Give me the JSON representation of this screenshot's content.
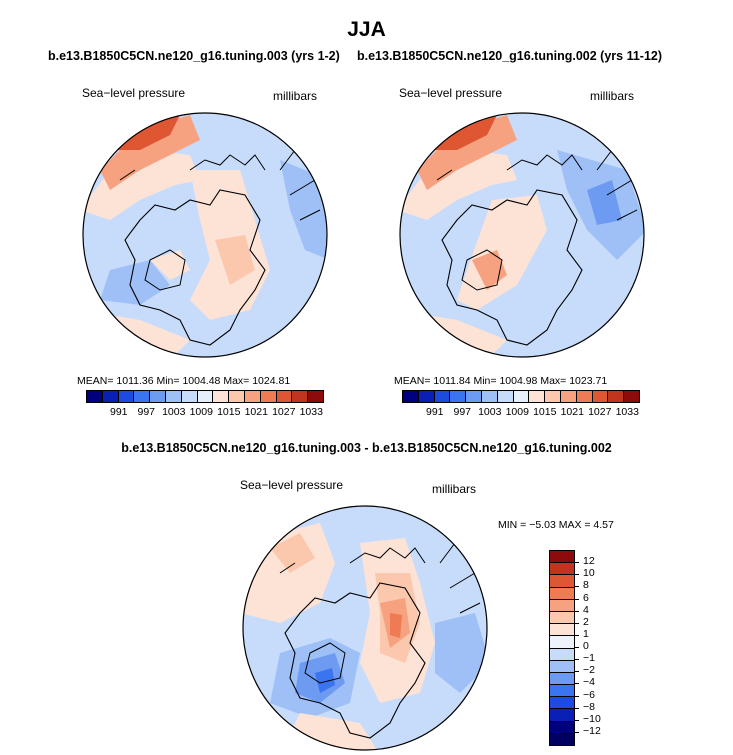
{
  "season": "JJA",
  "palette": {
    "levels_abs": [
      "991",
      "997",
      "1003",
      "1009",
      "1015",
      "1021",
      "1027",
      "1033"
    ],
    "levels_diff": [
      "12",
      "10",
      "8",
      "6",
      "4",
      "2",
      "1",
      "0",
      "−1",
      "−2",
      "−4",
      "−6",
      "−8",
      "−10",
      "−12"
    ],
    "colors_abs": [
      "#00007f",
      "#0a1fb5",
      "#1d4be0",
      "#3b74f0",
      "#6d9bf2",
      "#9ec0f7",
      "#c7dcfb",
      "#e6effc",
      "#fde3d6",
      "#fbc8ae",
      "#f6a17f",
      "#ee7b53",
      "#df5632",
      "#c1341d",
      "#8e0b0b"
    ],
    "colors_diff": [
      "#8e0b0b",
      "#c1341d",
      "#df5632",
      "#ee7b53",
      "#f6a17f",
      "#fbc8ae",
      "#fde3d6",
      "#eef3fb",
      "#c7dcfb",
      "#9ec0f7",
      "#6d9bf2",
      "#3b74f0",
      "#1d4be0",
      "#0a1fb5",
      "#00007f",
      "#000060"
    ]
  },
  "panels": [
    {
      "run_title": "b.e13.B1850C5CN.ne120_g16.tuning.003 (yrs 1-2)",
      "variable": "Sea−level pressure",
      "units": "millibars",
      "stats": "MEAN=  1011.36   Min=  1004.48   Max=  1024.81"
    },
    {
      "run_title": "b.e13.B1850C5CN.ne120_g16.tuning.002 (yrs 11-12)",
      "variable": "Sea−level pressure",
      "units": "millibars",
      "stats": "MEAN=  1011.84   Min=  1004.98   Max=  1023.71"
    }
  ],
  "difference": {
    "title": "b.e13.B1850C5CN.ne120_g16.tuning.003 - b.e13.B1850C5CN.ne120_g16.tuning.002",
    "variable": "Sea−level pressure",
    "units": "millibars",
    "stats": "MIN =   −5.03  MAX =    4.57"
  }
}
